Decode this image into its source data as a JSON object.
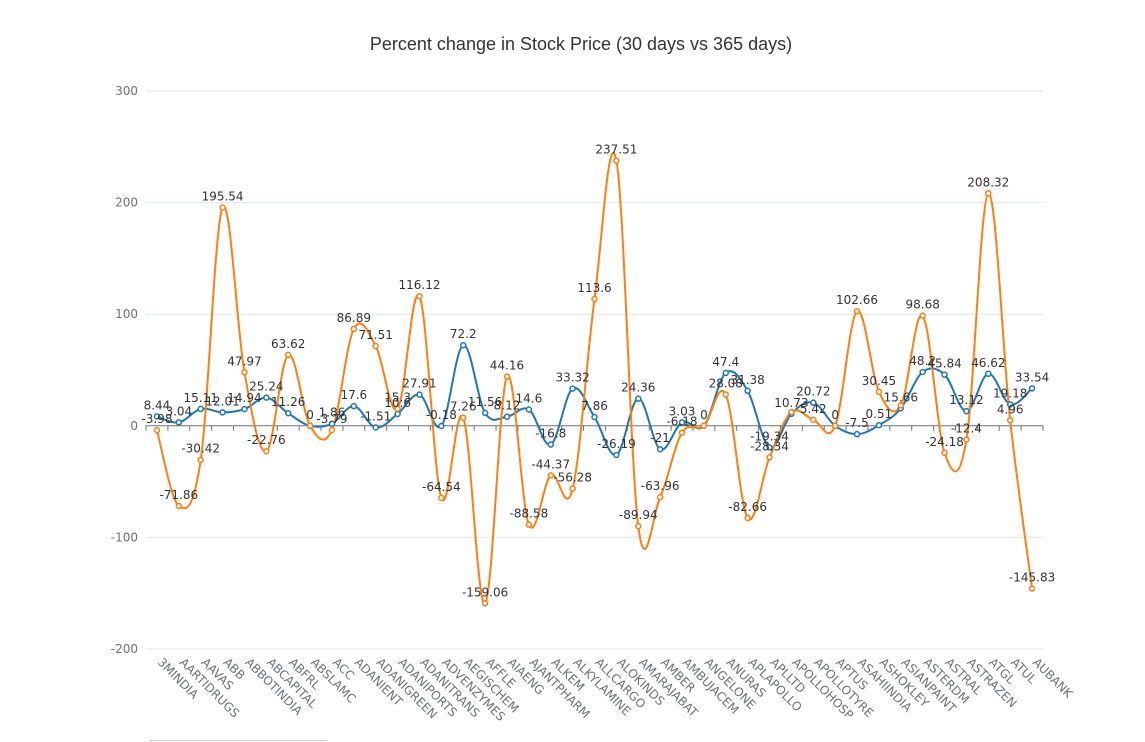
{
  "chart_data": {
    "type": "line",
    "title": "Percent change in Stock Price (30 days vs 365 days)",
    "xlabel": "",
    "ylabel": "",
    "ylim": [
      -200,
      300
    ],
    "yticks": [
      -200,
      -100,
      0,
      100,
      200,
      300
    ],
    "grid": true,
    "smooth": true,
    "categories": [
      "3MINDIA",
      "AARTIDRUGS",
      "AAVAS",
      "ABB",
      "ABBOTINDIA",
      "ABCAPITAL",
      "ABFRL",
      "ABSLAMC",
      "ACC",
      "ADANIENT",
      "ADANIGREEN",
      "ADANIPORTS",
      "ADANITRANS",
      "ADVENZYMES",
      "AEGISCHEM",
      "AFFLE",
      "AIAENG",
      "AJANTPHARM",
      "ALKEM",
      "ALKYLAMINE",
      "ALLCARGO",
      "ALOKINDS",
      "AMARAJABAT",
      "AMBER",
      "AMBUJACEM",
      "ANGELONE",
      "ANURAS",
      "APLAPOLLO",
      "APLLTD",
      "APOLLOHOSP",
      "APOLLOTYRE",
      "APTUS",
      "ASAHIINDIA",
      "ASHOKLEY",
      "ASIANPAINT",
      "ASTERDM",
      "ASTRAL",
      "ASTRAZEN",
      "ATGL",
      "ATUL",
      "AUBANK"
    ],
    "series": [
      {
        "values": [
          8.44,
          3.04,
          15.11,
          12.01,
          14.94,
          25.24,
          11.26,
          0,
          1.86,
          17.6,
          -1.51,
          10.6,
          27.91,
          -0.18,
          72.2,
          11.56,
          8.12,
          14.6,
          -16.8,
          33.32,
          7.86,
          -26.19,
          24.36,
          -21,
          3.03,
          0,
          47.4,
          31.38,
          -19.34,
          10.73,
          20.72,
          0,
          -7.5,
          0.51,
          15.66,
          48.2,
          45.84,
          13.12,
          46.62,
          19.18,
          33.54
        ],
        "color": "#1f77b4"
      },
      {
        "values": [
          -3.98,
          -71.86,
          -30.42,
          195.54,
          47.97,
          -22.76,
          63.62,
          0,
          -3.79,
          86.89,
          71.51,
          15.3,
          116.12,
          -64.54,
          7.26,
          -159.06,
          44.16,
          -88.58,
          -44.37,
          -56.28,
          113.6,
          237.51,
          -89.94,
          -63.96,
          -6.18,
          0,
          28.08,
          -82.66,
          -28.34,
          12.2,
          5.42,
          0,
          102.66,
          30.45,
          18.3,
          98.68,
          -24.18,
          -12.4,
          208.32,
          4.96,
          -145.83
        ],
        "color": "#ff7f0e"
      }
    ],
    "labels": {
      "s0": [
        "8.44",
        "3.04",
        "15.11",
        "12.01",
        "14.94",
        "25.24",
        "11.26",
        "0",
        "1.86",
        "17.6",
        "-1.51",
        "10.6",
        "27.91",
        "-0.18",
        "72.2",
        "11.56",
        "8.12",
        "14.6",
        "-16.8",
        "33.32",
        "7.86",
        "-26.19",
        "24.36",
        "-21",
        "3.03",
        "0",
        "47.4",
        "31.38",
        "-19.34",
        "10.73",
        "20.72",
        "0",
        "-7.5",
        "0.51",
        "15.66",
        "48.2",
        "45.84",
        "13.12",
        "46.62",
        "19.18",
        "33.54"
      ],
      "s1": [
        "-3.98",
        "-71.86",
        "-30.42",
        "195.54",
        "47.97",
        "-22.76",
        "63.62",
        "",
        "-3.79",
        "86.89",
        "71.51",
        "15.3",
        "116.12",
        "-64.54",
        "7.26",
        "-159.06",
        "44.16",
        "-88.58",
        "-44.37",
        "-56.28",
        "113.6",
        "237.51",
        "-89.94",
        "-63.96",
        "-6.18",
        "",
        "28.08",
        "-82.66",
        "-28.34",
        "",
        "5.42",
        "",
        "102.66",
        "30.45",
        "",
        "98.68",
        "-24.18",
        "-12.4",
        "208.32",
        "4.96",
        "-145.83"
      ]
    }
  }
}
